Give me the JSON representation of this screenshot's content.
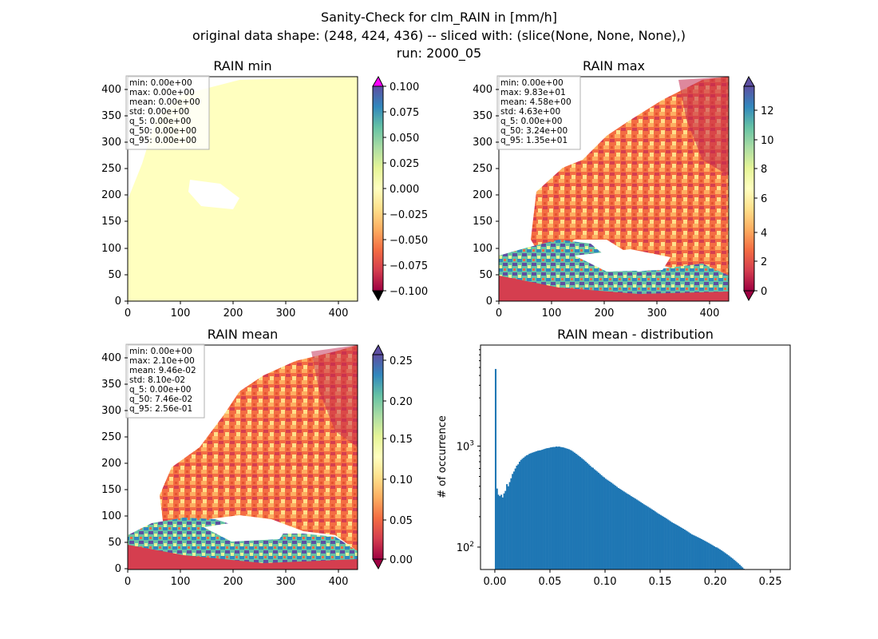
{
  "suptitle": {
    "line1": "Sanity-Check for clm_RAIN in [mm/h]",
    "line2": "original data shape: (248, 424, 436) -- sliced with: (slice(None, None, None),)",
    "line3": "run: 2000_05"
  },
  "colors": {
    "hist_bar": "#1f77b4",
    "land_min": "#ffffbf",
    "over": "#ff00ff",
    "under": "#000000"
  },
  "chart_data": [
    {
      "type": "heatmap",
      "title": "RAIN min",
      "xlim": [
        0,
        436
      ],
      "ylim": [
        0,
        424
      ],
      "x_ticks": [
        "0",
        "100",
        "200",
        "300",
        "400"
      ],
      "y_ticks": [
        "0",
        "50",
        "100",
        "150",
        "200",
        "250",
        "300",
        "350",
        "400"
      ],
      "colormap": "Spectral",
      "colorbar": {
        "range": [
          -0.1,
          0.1
        ],
        "ticks": [
          "0.100",
          "0.075",
          "0.050",
          "0.025",
          "0.000",
          "−0.025",
          "−0.050",
          "−0.075",
          "−0.100"
        ],
        "extend": "both"
      },
      "stats": [
        "min: 0.00e+00",
        "max: 0.00e+00",
        "mean: 0.00e+00",
        "std: 0.00e+00",
        "q_5: 0.00e+00",
        "q_50: 0.00e+00",
        "q_95: 0.00e+00"
      ]
    },
    {
      "type": "heatmap",
      "title": "RAIN max",
      "xlim": [
        0,
        436
      ],
      "ylim": [
        0,
        424
      ],
      "x_ticks": [
        "0",
        "100",
        "200",
        "300",
        "400"
      ],
      "y_ticks": [
        "0",
        "50",
        "100",
        "150",
        "200",
        "250",
        "300",
        "350",
        "400"
      ],
      "colormap": "Spectral",
      "colorbar": {
        "range": [
          0,
          14
        ],
        "ticks": [
          "12",
          "10",
          "8",
          "6",
          "4",
          "2",
          "0"
        ],
        "extend": "both"
      },
      "stats": [
        "min: 0.00e+00",
        "max: 9.83e+01",
        "mean: 4.58e+00",
        "std: 4.63e+00",
        "q_5: 0.00e+00",
        "q_50: 3.24e+00",
        "q_95: 1.35e+01"
      ]
    },
    {
      "type": "heatmap",
      "title": "RAIN mean",
      "xlim": [
        0,
        436
      ],
      "ylim": [
        0,
        424
      ],
      "x_ticks": [
        "0",
        "100",
        "200",
        "300",
        "400"
      ],
      "y_ticks": [
        "0",
        "50",
        "100",
        "150",
        "200",
        "250",
        "300",
        "350",
        "400"
      ],
      "colormap": "Spectral",
      "colorbar": {
        "range": [
          0,
          0.26
        ],
        "ticks": [
          "0.25",
          "0.20",
          "0.15",
          "0.10",
          "0.05",
          "0.00"
        ],
        "extend": "both"
      },
      "stats": [
        "min: 0.00e+00",
        "max: 2.10e+00",
        "mean: 9.46e-02",
        "std: 8.10e-02",
        "q_5: 0.00e+00",
        "q_50: 7.46e-02",
        "q_95: 2.56e-01"
      ]
    },
    {
      "type": "bar",
      "title": "RAIN mean - distribution",
      "xlabel": "",
      "ylabel": "# of occurrence",
      "yscale": "log",
      "xlim": [
        -0.013,
        0.268
      ],
      "ylim": [
        60,
        10000
      ],
      "x_ticks": [
        "0.00",
        "0.05",
        "0.10",
        "0.15",
        "0.20",
        "0.25"
      ],
      "y_ticks": [
        {
          "base": "10",
          "exp": "2"
        },
        {
          "base": "10",
          "exp": "3"
        }
      ],
      "bin_edges_start": 0.0,
      "bin_width": 0.00128,
      "counts": [
        5800,
        380,
        330,
        320,
        330,
        310,
        340,
        360,
        420,
        400,
        440,
        480,
        530,
        560,
        600,
        640,
        660,
        700,
        730,
        750,
        770,
        790,
        810,
        820,
        840,
        850,
        860,
        870,
        880,
        890,
        900,
        905,
        910,
        920,
        930,
        940,
        950,
        955,
        960,
        970,
        975,
        980,
        980,
        990,
        985,
        990,
        980,
        975,
        970,
        960,
        950,
        940,
        930,
        915,
        900,
        880,
        860,
        840,
        820,
        800,
        780,
        760,
        740,
        720,
        700,
        680,
        660,
        640,
        620,
        610,
        590,
        575,
        560,
        545,
        530,
        515,
        500,
        490,
        475,
        465,
        455,
        445,
        435,
        425,
        415,
        405,
        395,
        385,
        378,
        370,
        362,
        355,
        348,
        340,
        334,
        328,
        320,
        314,
        308,
        302,
        296,
        290,
        284,
        278,
        272,
        266,
        261,
        256,
        251,
        246,
        241,
        236,
        231,
        226,
        221,
        216,
        212,
        208,
        204,
        200,
        196,
        192,
        188,
        184,
        180,
        176,
        173,
        170,
        167,
        164,
        161,
        158,
        155,
        152,
        149,
        146,
        143,
        140,
        137,
        134,
        132,
        130,
        128,
        126,
        124,
        122,
        120,
        118,
        116,
        114,
        112,
        110,
        108,
        106,
        104,
        102,
        100,
        99,
        97,
        95,
        93,
        91,
        89,
        87,
        85,
        83,
        81,
        79,
        77,
        75,
        73,
        71,
        69,
        67,
        65,
        63,
        61,
        60,
        60,
        60,
        60,
        60,
        60,
        60,
        60,
        60,
        60,
        60,
        60,
        60,
        60,
        60,
        60,
        60,
        60,
        60,
        60,
        60,
        60,
        60,
        60,
        60,
        60,
        60,
        60,
        60,
        60,
        60,
        60,
        60,
        60,
        60,
        60,
        60,
        60,
        60,
        60,
        60,
        60,
        60,
        60,
        60,
        60,
        60,
        60,
        60,
        60,
        60,
        60,
        60,
        60,
        60,
        60,
        60,
        60,
        60,
        60,
        60,
        60,
        60,
        60,
        60,
        60,
        60,
        60,
        60,
        60,
        60,
        60,
        60
      ]
    }
  ]
}
